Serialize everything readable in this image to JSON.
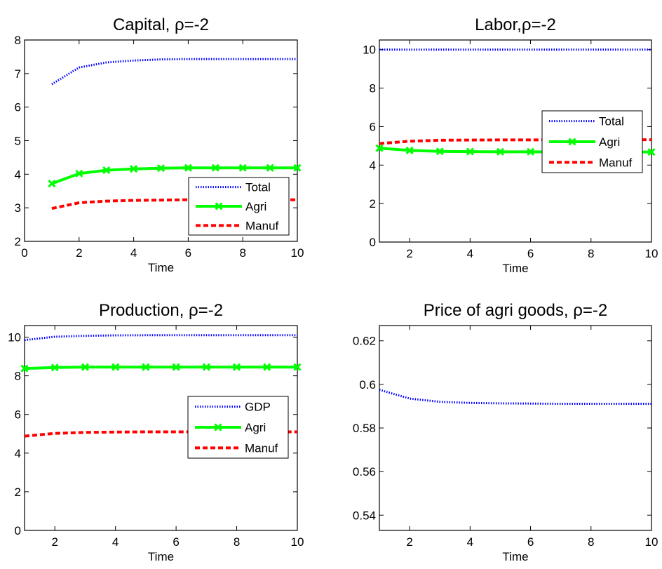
{
  "chart_data": [
    {
      "type": "line",
      "title": "Capital, ρ=-2",
      "xlabel": "Time",
      "ylabel": "",
      "xlim": [
        0,
        10
      ],
      "ylim": [
        2,
        8
      ],
      "xticks": [
        0,
        2,
        4,
        6,
        8,
        10
      ],
      "yticks": [
        2,
        3,
        4,
        5,
        6,
        7,
        8
      ],
      "legend": "bottom-right",
      "x": [
        1,
        2,
        3,
        4,
        5,
        6,
        7,
        8,
        9,
        10
      ],
      "series": [
        {
          "name": "Total",
          "style": "dotted",
          "color": "#0000ff",
          "values": [
            6.68,
            7.18,
            7.33,
            7.39,
            7.42,
            7.43,
            7.43,
            7.43,
            7.43,
            7.43
          ]
        },
        {
          "name": "Agri",
          "style": "solid-x",
          "color": "#00ff00",
          "values": [
            3.72,
            4.02,
            4.12,
            4.16,
            4.18,
            4.19,
            4.19,
            4.19,
            4.19,
            4.19
          ]
        },
        {
          "name": "Manuf",
          "style": "dashed",
          "color": "#ff0000",
          "values": [
            2.98,
            3.15,
            3.2,
            3.22,
            3.23,
            3.24,
            3.24,
            3.24,
            3.24,
            3.24
          ]
        }
      ]
    },
    {
      "type": "line",
      "title": "Labor,ρ=-2",
      "xlabel": "Time",
      "ylabel": "",
      "xlim": [
        1,
        10
      ],
      "ylim": [
        0,
        10.5
      ],
      "xticks": [
        2,
        4,
        6,
        8,
        10
      ],
      "yticks": [
        0,
        2,
        4,
        6,
        8,
        10
      ],
      "legend": "right",
      "x": [
        1,
        2,
        3,
        4,
        5,
        6,
        7,
        8,
        9,
        10
      ],
      "series": [
        {
          "name": "Total",
          "style": "dotted",
          "color": "#0000ff",
          "values": [
            10,
            10,
            10,
            10,
            10,
            10,
            10,
            10,
            10,
            10
          ]
        },
        {
          "name": "Agri",
          "style": "solid-x",
          "color": "#00ff00",
          "values": [
            4.88,
            4.76,
            4.71,
            4.7,
            4.69,
            4.69,
            4.68,
            4.68,
            4.68,
            4.68
          ]
        },
        {
          "name": "Manuf",
          "style": "dashed",
          "color": "#ff0000",
          "values": [
            5.12,
            5.24,
            5.29,
            5.3,
            5.31,
            5.31,
            5.32,
            5.32,
            5.32,
            5.32
          ]
        }
      ]
    },
    {
      "type": "line",
      "title": "Production, ρ=-2",
      "xlabel": "Time",
      "ylabel": "",
      "xlim": [
        1,
        10
      ],
      "ylim": [
        0,
        10.6
      ],
      "xticks": [
        2,
        4,
        6,
        8,
        10
      ],
      "yticks": [
        0,
        2,
        4,
        6,
        8,
        10
      ],
      "legend": "right",
      "x": [
        1,
        2,
        3,
        4,
        5,
        6,
        7,
        8,
        9,
        10
      ],
      "series": [
        {
          "name": "GDP",
          "style": "dotted",
          "color": "#0000ff",
          "values": [
            9.85,
            10.02,
            10.07,
            10.09,
            10.1,
            10.1,
            10.1,
            10.1,
            10.1,
            10.1
          ]
        },
        {
          "name": "Agri",
          "style": "solid-x",
          "color": "#00ff00",
          "values": [
            8.38,
            8.43,
            8.45,
            8.45,
            8.45,
            8.45,
            8.45,
            8.45,
            8.45,
            8.45
          ]
        },
        {
          "name": "Manuf",
          "style": "dashed",
          "color": "#ff0000",
          "values": [
            4.88,
            5.02,
            5.07,
            5.09,
            5.1,
            5.1,
            5.1,
            5.1,
            5.1,
            5.1
          ]
        }
      ]
    },
    {
      "type": "line",
      "title": "Price of agri goods, ρ=-2",
      "xlabel": "Time",
      "ylabel": "",
      "xlim": [
        1,
        10
      ],
      "ylim": [
        0.533,
        0.627
      ],
      "xticks": [
        2,
        4,
        6,
        8,
        10
      ],
      "yticks": [
        0.54,
        0.56,
        0.58,
        0.6,
        0.62
      ],
      "legend": "none",
      "x": [
        1,
        2,
        3,
        4,
        5,
        6,
        7,
        8,
        9,
        10
      ],
      "series": [
        {
          "name": "",
          "style": "dotted",
          "color": "#0000ff",
          "values": [
            0.5975,
            0.5935,
            0.592,
            0.5915,
            0.5913,
            0.5912,
            0.5911,
            0.5911,
            0.5911,
            0.5911
          ]
        }
      ]
    }
  ]
}
